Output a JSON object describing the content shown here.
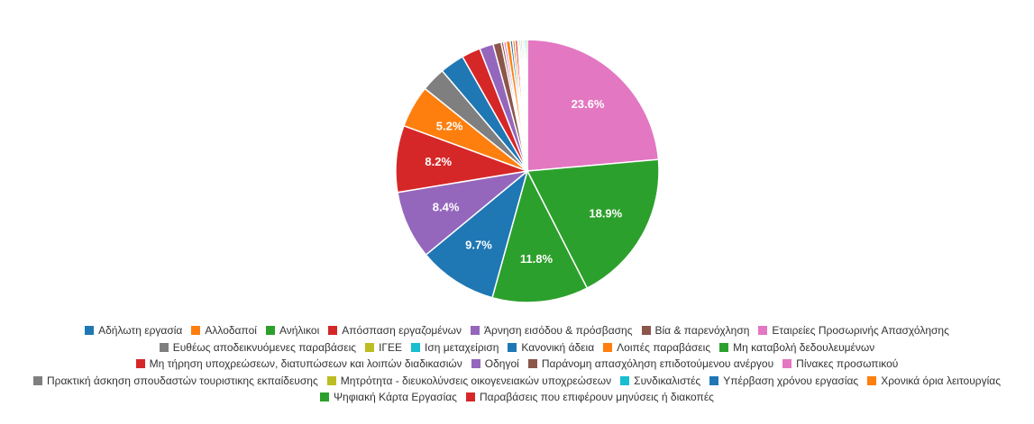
{
  "chart_data": {
    "type": "pie",
    "title": "",
    "label_min_percent": 5,
    "slices": [
      {
        "name": "Αδήλωτη εργασία",
        "value": 9.7,
        "color": "#1f77b4"
      },
      {
        "name": "Αλλοδαποί",
        "value": 5.2,
        "color": "#ff7f0e"
      },
      {
        "name": "Ανήλικοι",
        "value": 11.8,
        "color": "#2ca02c"
      },
      {
        "name": "Απόσπαση εργαζομένων",
        "value": 8.2,
        "color": "#d62728"
      },
      {
        "name": "Άρνηση εισόδου & πρόσβασης",
        "value": 8.4,
        "color": "#9467bd"
      },
      {
        "name": "Βία & παρενόχληση",
        "value": 1.0,
        "color": "#8c564b"
      },
      {
        "name": "Εταιρείες Προσωρινής Απασχόλησης",
        "value": 23.6,
        "color": "#e377c2"
      },
      {
        "name": "Ευθέως αποδεικνυόμενες παραβάσεις",
        "value": 3.0,
        "color": "#7f7f7f"
      },
      {
        "name": "ΙΓΕΕ",
        "value": 0.2,
        "color": "#bcbd22"
      },
      {
        "name": "Ιση μεταχείριση",
        "value": 0.2,
        "color": "#17becf"
      },
      {
        "name": "Κανονική άδεια",
        "value": 3.0,
        "color": "#1f77b4"
      },
      {
        "name": "Λοιπές παραβάσεις",
        "value": 0.5,
        "color": "#ff7f0e"
      },
      {
        "name": "Μη καταβολή δεδουλευμένων",
        "value": 18.9,
        "color": "#2ca02c"
      },
      {
        "name": "Μη τήρηση υποχρεώσεων, διατυπώσεων και λοιπών διαδικασιών",
        "value": 2.3,
        "color": "#d62728"
      },
      {
        "name": "Οδηγοί",
        "value": 1.7,
        "color": "#9467bd"
      },
      {
        "name": "Παράνομη απασχόληση επιδοτούμενου ανέργου",
        "value": 0.3,
        "color": "#8c564b"
      },
      {
        "name": "Πίνακες προσωπικού",
        "value": 0.3,
        "color": "#e377c2"
      },
      {
        "name": "Πρακτική άσκηση σπουδαστών τουριστικης εκπαίδευσης",
        "value": 0.2,
        "color": "#7f7f7f"
      },
      {
        "name": "Μητρότητα - διευκολύνσεις οικογενειακών υποχρεώσεων",
        "value": 0.2,
        "color": "#bcbd22"
      },
      {
        "name": "Συνδικαλιστές",
        "value": 0.2,
        "color": "#17becf"
      },
      {
        "name": "Υπέρβαση χρόνου εργασίας",
        "value": 0.3,
        "color": "#1f77b4"
      },
      {
        "name": "Χρονικά όρια λειτουργίας",
        "value": 0.3,
        "color": "#ff7f0e"
      },
      {
        "name": "Ψηφιακή Κάρτα Εργασίας",
        "value": 0.2,
        "color": "#2ca02c"
      },
      {
        "name": "Παραβάσεις που επιφέρουν μηνύσεις ή διακοπές",
        "value": 0.3,
        "color": "#d62728"
      }
    ],
    "draw_order": [
      6,
      12,
      2,
      0,
      4,
      3,
      1,
      7,
      10,
      13,
      14,
      5,
      15,
      16,
      11,
      20,
      21,
      23,
      8,
      9,
      17,
      18,
      19,
      22
    ],
    "legend_rows": [
      [
        0,
        1,
        2,
        3,
        4,
        5,
        6
      ],
      [
        7,
        8,
        9,
        10,
        11,
        12
      ],
      [
        13,
        14,
        15,
        16
      ],
      [
        17,
        18,
        19,
        20,
        21
      ],
      [
        22,
        23
      ]
    ],
    "legend_position": "bottom"
  }
}
